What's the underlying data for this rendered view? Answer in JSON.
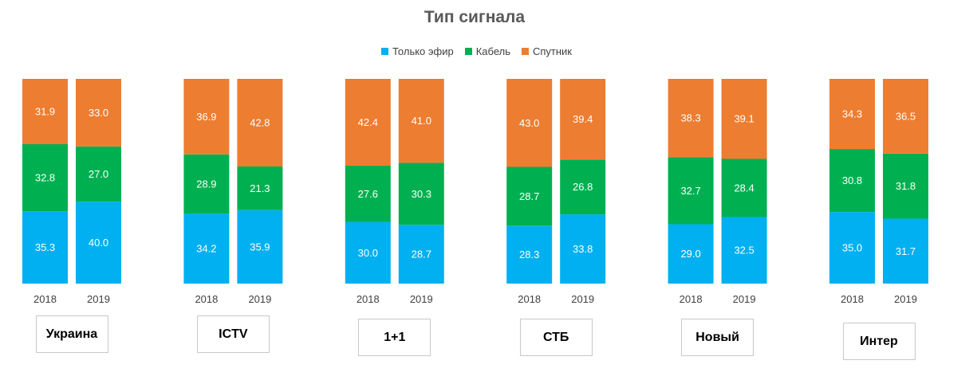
{
  "chart_data": {
    "type": "bar",
    "stacked": true,
    "percent_stacked": true,
    "title": "Тип сигнала",
    "legend": {
      "position": "top"
    },
    "series_colors": {
      "Только эфир": "#00b0f0",
      "Кабель": "#00b050",
      "Спутник": "#ed7d31"
    },
    "series_order": [
      "Только эфир",
      "Кабель",
      "Спутник"
    ],
    "groups": [
      {
        "label": "Украина",
        "bars": [
          {
            "year": "2018",
            "values": [
              35.3,
              32.8,
              31.9
            ]
          },
          {
            "year": "2019",
            "values": [
              40.0,
              27.0,
              33.0
            ]
          }
        ]
      },
      {
        "label": "ICTV",
        "bars": [
          {
            "year": "2018",
            "values": [
              34.2,
              28.9,
              36.9
            ]
          },
          {
            "year": "2019",
            "values": [
              35.9,
              21.3,
              42.8
            ]
          }
        ]
      },
      {
        "label": "1+1",
        "bars": [
          {
            "year": "2018",
            "values": [
              30.0,
              27.6,
              42.4
            ]
          },
          {
            "year": "2019",
            "values": [
              28.7,
              30.3,
              41.0
            ]
          }
        ]
      },
      {
        "label": "СТБ",
        "bars": [
          {
            "year": "2018",
            "values": [
              28.3,
              28.7,
              43.0
            ]
          },
          {
            "year": "2019",
            "values": [
              33.8,
              26.8,
              39.4
            ]
          }
        ]
      },
      {
        "label": "Новый",
        "bars": [
          {
            "year": "2018",
            "values": [
              29.0,
              32.7,
              38.3
            ]
          },
          {
            "year": "2019",
            "values": [
              32.5,
              28.4,
              39.1
            ]
          }
        ]
      },
      {
        "label": "Интер",
        "bars": [
          {
            "year": "2018",
            "values": [
              35.0,
              30.8,
              34.3
            ]
          },
          {
            "year": "2019",
            "values": [
              31.7,
              31.8,
              36.5
            ]
          }
        ]
      }
    ]
  }
}
